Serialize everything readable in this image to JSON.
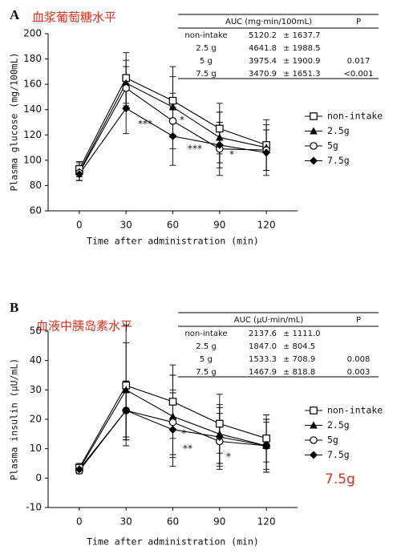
{
  "chart_data": [
    {
      "type": "line",
      "panel": "A",
      "caption": "血浆葡萄糖水平",
      "x_label": "Time after administration (min)",
      "y_label": "Plasma glucose (mg/100mL)",
      "x": [
        0,
        30,
        60,
        90,
        120
      ],
      "xlim": [
        -20,
        140
      ],
      "xticks": [
        0,
        30,
        60,
        90,
        120
      ],
      "ylim": [
        60,
        200
      ],
      "yticks": [
        60,
        80,
        100,
        120,
        140,
        160,
        180,
        200
      ],
      "series": [
        {
          "name": "non-intake",
          "color": "#000000",
          "marker": "open-square",
          "values": [
            93,
            165,
            147,
            125,
            112
          ],
          "errors": [
            6,
            20,
            27,
            20,
            20
          ]
        },
        {
          "name": "2.5g",
          "color": "#000000",
          "marker": "filled-triangle",
          "values": [
            91,
            161,
            142,
            118,
            110
          ],
          "errors": [
            7,
            18,
            24,
            20,
            18
          ]
        },
        {
          "name": "5g",
          "color": "#000000",
          "marker": "open-circle",
          "values": [
            90,
            157,
            131,
            109,
            108
          ],
          "errors": [
            6,
            17,
            22,
            21,
            16
          ]
        },
        {
          "name": "7.5g",
          "color": "#000000",
          "marker": "filled-diamond",
          "values": [
            89,
            141,
            119,
            112,
            106
          ],
          "errors": [
            5,
            20,
            23,
            18,
            18
          ]
        }
      ],
      "annotations": [
        "***",
        "*",
        "***",
        "*"
      ],
      "auc_table": {
        "header": [
          "AUC (mg·min/100mL)",
          "P"
        ],
        "rows": [
          {
            "label": "non-intake",
            "mean": "5120.2",
            "sd": "± 1637.7"
          },
          {
            "label": "2.5 g",
            "mean": "4641.8",
            "sd": "± 1988.5"
          },
          {
            "label": "5 g",
            "mean": "3975.4",
            "sd": "± 1900.9",
            "p": "0.017"
          },
          {
            "label": "7.5 g",
            "mean": "3470.9",
            "sd": "± 1651.3",
            "p": "<0.001"
          }
        ]
      }
    },
    {
      "type": "line",
      "panel": "B",
      "caption": "血液中胰岛素水平",
      "highlight": "7.5g",
      "x_label": "Time after administration (min)",
      "y_label": "Plasma insulin (μU/mL)",
      "x": [
        0,
        30,
        60,
        90,
        120
      ],
      "xlim": [
        -20,
        140
      ],
      "xticks": [
        0,
        30,
        60,
        90,
        120
      ],
      "ylim": [
        -10,
        50
      ],
      "yticks": [
        -10,
        0,
        10,
        20,
        30,
        40,
        50
      ],
      "series": [
        {
          "name": "non-intake",
          "color": "#000000",
          "marker": "open-square",
          "values": [
            3.5,
            31.5,
            26,
            18.5,
            13.5
          ],
          "errors": [
            1.5,
            20.5,
            12.5,
            10,
            8
          ]
        },
        {
          "name": "2.5g",
          "color": "#000000",
          "marker": "filled-triangle",
          "values": [
            3,
            30,
            21,
            15,
            11
          ],
          "errors": [
            1.2,
            16,
            14,
            10,
            8
          ]
        },
        {
          "name": "5g",
          "color": "#000000",
          "marker": "open-circle",
          "values": [
            2.5,
            23,
            19,
            12.5,
            11
          ],
          "errors": [
            1,
            10,
            11,
            9.5,
            9
          ]
        },
        {
          "name": "7.5g",
          "color": "#000000",
          "marker": "filled-diamond",
          "values": [
            3,
            23,
            16.5,
            14,
            11
          ],
          "errors": [
            1.5,
            10,
            12.5,
            10,
            9
          ]
        }
      ],
      "annotations": [
        "*",
        "**",
        "*"
      ],
      "auc_table": {
        "header": [
          "AUC (μU·min/mL)",
          "P"
        ],
        "rows": [
          {
            "label": "non-intake",
            "mean": "2137.6",
            "sd": "± 1111.0"
          },
          {
            "label": "2.5 g",
            "mean": "1847.0",
            "sd": "± 804.5"
          },
          {
            "label": "5 g",
            "mean": "1533.3",
            "sd": "± 708.9",
            "p": "0.008"
          },
          {
            "label": "7.5 g",
            "mean": "1467.9",
            "sd": "± 818.8",
            "p": "0.003"
          }
        ]
      }
    }
  ]
}
